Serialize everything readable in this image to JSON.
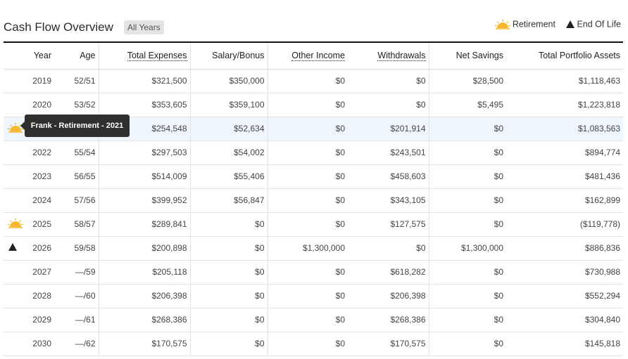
{
  "header": {
    "title": "Cash Flow Overview",
    "badge": "All Years"
  },
  "legend": {
    "retirement": "Retirement",
    "end_of_life": "End Of Life"
  },
  "columns": [
    "Year",
    "Age",
    "Total Expenses",
    "Salary/Bonus",
    "Other Income",
    "Withdrawals",
    "Net Savings",
    "Total Portfolio Assets"
  ],
  "tooltip": "Frank - Retirement - 2021",
  "rows": [
    {
      "icon": "",
      "year": "2019",
      "age": "52/51",
      "expenses": "$321,500",
      "salary": "$350,000",
      "other": "$0",
      "withdrawals": "$0",
      "savings": "$28,500",
      "assets": "$1,118,463"
    },
    {
      "icon": "",
      "year": "2020",
      "age": "53/52",
      "expenses": "$353,605",
      "salary": "$359,100",
      "other": "$0",
      "withdrawals": "$0",
      "savings": "$5,495",
      "assets": "$1,223,818"
    },
    {
      "icon": "sun",
      "year": "",
      "age": "",
      "expenses": "$254,548",
      "salary": "$52,634",
      "other": "$0",
      "withdrawals": "$201,914",
      "savings": "$0",
      "assets": "$1,083,563"
    },
    {
      "icon": "",
      "year": "2022",
      "age": "55/54",
      "expenses": "$297,503",
      "salary": "$54,002",
      "other": "$0",
      "withdrawals": "$243,501",
      "savings": "$0",
      "assets": "$894,774"
    },
    {
      "icon": "",
      "year": "2023",
      "age": "56/55",
      "expenses": "$514,009",
      "salary": "$55,406",
      "other": "$0",
      "withdrawals": "$458,603",
      "savings": "$0",
      "assets": "$481,436"
    },
    {
      "icon": "",
      "year": "2024",
      "age": "57/56",
      "expenses": "$399,952",
      "salary": "$56,847",
      "other": "$0",
      "withdrawals": "$343,105",
      "savings": "$0",
      "assets": "$162,899"
    },
    {
      "icon": "sun",
      "year": "2025",
      "age": "58/57",
      "expenses": "$289,841",
      "salary": "$0",
      "other": "$0",
      "withdrawals": "$127,575",
      "savings": "$0",
      "assets": "($119,778)"
    },
    {
      "icon": "tri",
      "year": "2026",
      "age": "59/58",
      "expenses": "$200,898",
      "salary": "$0",
      "other": "$1,300,000",
      "withdrawals": "$0",
      "savings": "$1,300,000",
      "assets": "$886,836"
    },
    {
      "icon": "",
      "year": "2027",
      "age": "—/59",
      "expenses": "$205,118",
      "salary": "$0",
      "other": "$0",
      "withdrawals": "$618,282",
      "savings": "$0",
      "assets": "$730,988"
    },
    {
      "icon": "",
      "year": "2028",
      "age": "—/60",
      "expenses": "$206,398",
      "salary": "$0",
      "other": "$0",
      "withdrawals": "$206,398",
      "savings": "$0",
      "assets": "$552,294"
    },
    {
      "icon": "",
      "year": "2029",
      "age": "—/61",
      "expenses": "$268,386",
      "salary": "$0",
      "other": "$0",
      "withdrawals": "$268,386",
      "savings": "$0",
      "assets": "$304,840"
    },
    {
      "icon": "",
      "year": "2030",
      "age": "—/62",
      "expenses": "$170,575",
      "salary": "$0",
      "other": "$0",
      "withdrawals": "$170,575",
      "savings": "$0",
      "assets": "$145,818"
    }
  ],
  "colors": {
    "sun": "#f5b82e",
    "highlight": "#eef5fc",
    "tooltip_bg": "#2f2f2f"
  }
}
